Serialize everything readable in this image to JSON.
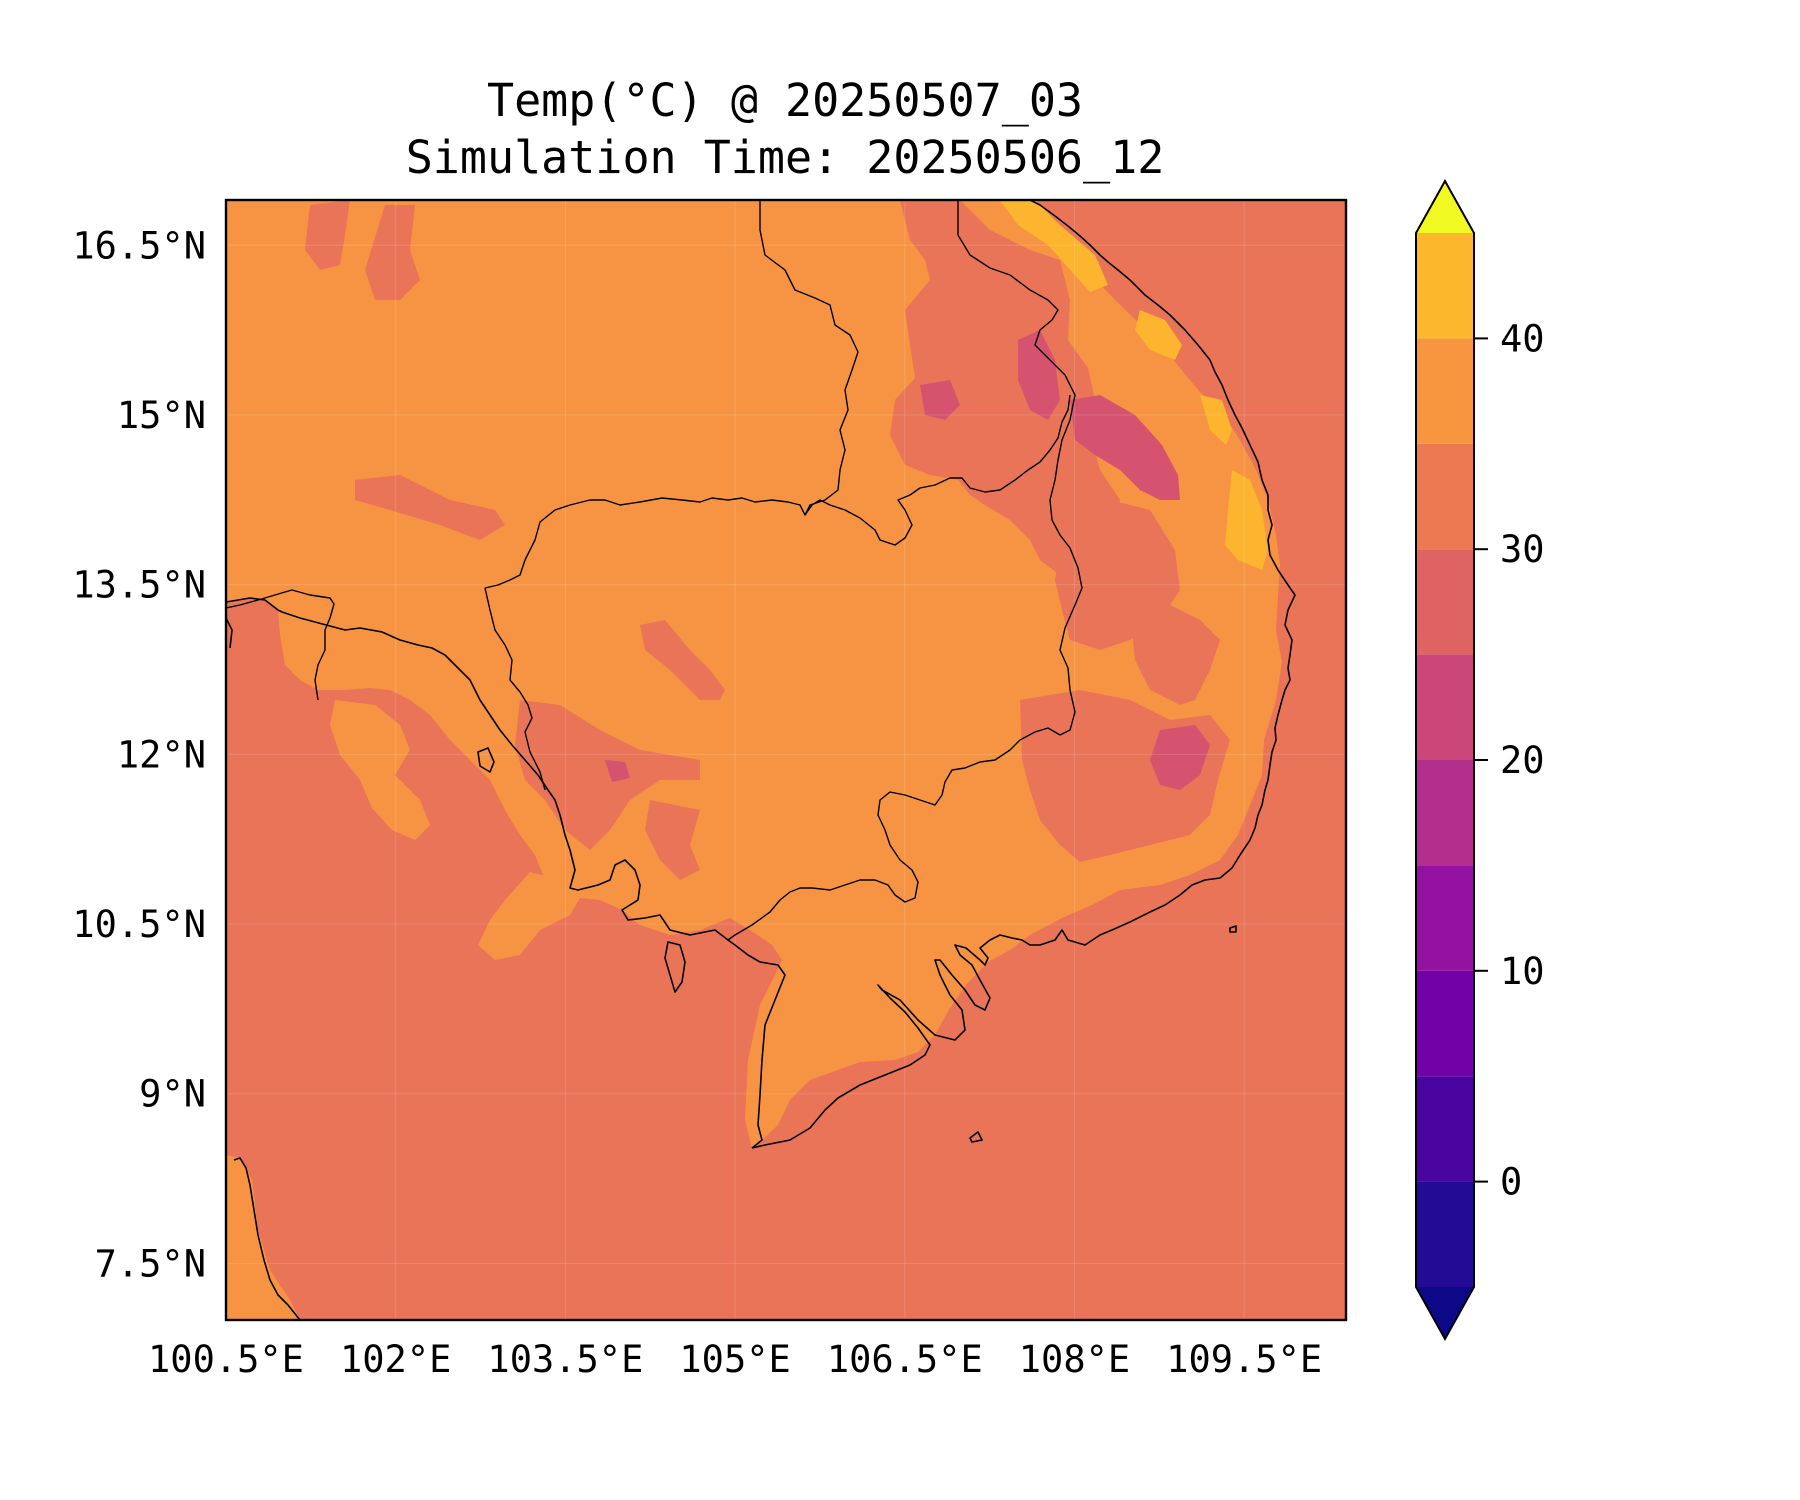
{
  "title": {
    "line1": "Temp(°C) @ 20250507_03",
    "line2": "Simulation Time: 20250506_12"
  },
  "map": {
    "lon_range": [
      100.5,
      110.4
    ],
    "lat_range": [
      7.0,
      16.9
    ],
    "lon_ticks": [
      {
        "value": 100.5,
        "label": "100.5°E"
      },
      {
        "value": 102.0,
        "label": "102°E"
      },
      {
        "value": 103.5,
        "label": "103.5°E"
      },
      {
        "value": 105.0,
        "label": "105°E"
      },
      {
        "value": 106.5,
        "label": "106.5°E"
      },
      {
        "value": 108.0,
        "label": "108°E"
      },
      {
        "value": 109.5,
        "label": "109.5°E"
      }
    ],
    "lat_ticks": [
      {
        "value": 16.5,
        "label": "16.5°N"
      },
      {
        "value": 15.0,
        "label": "15°N"
      },
      {
        "value": 13.5,
        "label": "13.5°N"
      },
      {
        "value": 12.0,
        "label": "12°N"
      },
      {
        "value": 10.5,
        "label": "10.5°N"
      },
      {
        "value": 9.0,
        "label": "9°N"
      },
      {
        "value": 7.5,
        "label": "7.5°N"
      }
    ],
    "grid": true,
    "field": "2 m temperature",
    "sea_level_value_band": [
      25,
      30
    ],
    "land_dominant_band": [
      30,
      35
    ],
    "colors": {
      "band_25_30": "#e97458",
      "band_30_35": "#f79443",
      "band_20_25": "#d5536f",
      "band_35_40": "#fdb42e",
      "band_40_45": "#f2e126"
    }
  },
  "colorbar": {
    "type": "contourf-colorbar",
    "extend": "both",
    "levels": [
      -5,
      0,
      5,
      10,
      15,
      20,
      25,
      30,
      35,
      40,
      45
    ],
    "colors": [
      "#240b96",
      "#4a049f",
      "#7102a7",
      "#9511a1",
      "#b42e8e",
      "#cb4779",
      "#e06363",
      "#ed7953",
      "#f8963f",
      "#fdb72d",
      "#f0e22a"
    ],
    "under_color": "#0d0887",
    "over_color": "#f0f921",
    "ticks": [
      {
        "value": 0,
        "label": "0"
      },
      {
        "value": 10,
        "label": "10"
      },
      {
        "value": 20,
        "label": "20"
      },
      {
        "value": 30,
        "label": "30"
      },
      {
        "value": 40,
        "label": "40"
      }
    ]
  }
}
